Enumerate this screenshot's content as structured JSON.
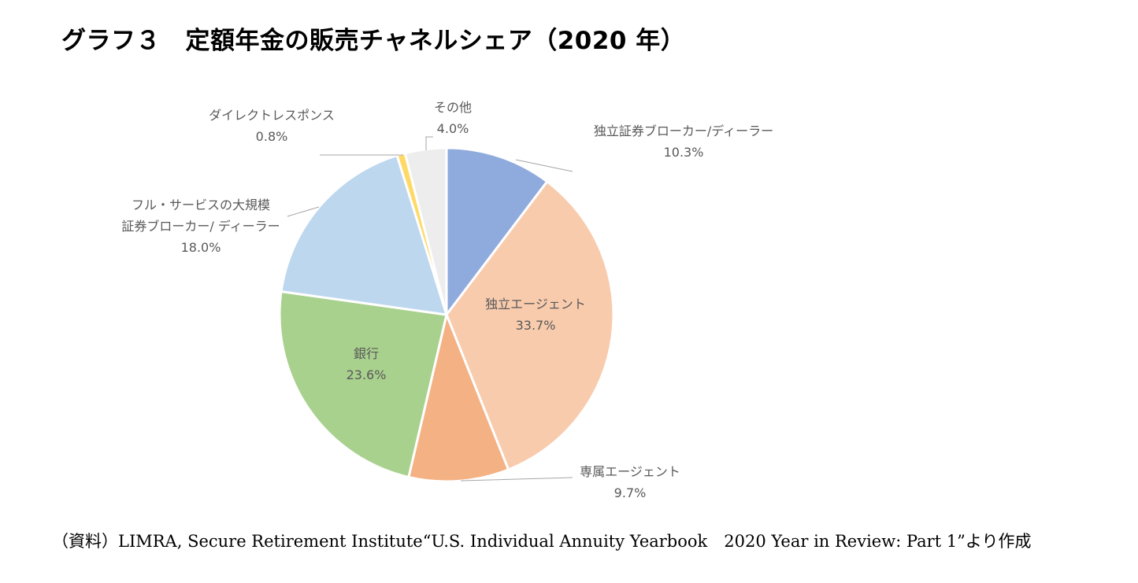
{
  "title": "グラフ３　定額年金の販売チャネルシェア（2020 年）",
  "source": "（資料）LIMRA, Secure Retirement Institute“U.S. Individual Annuity Yearbook　2020 Year in Review: Part 1”より作成",
  "chart_data": {
    "type": "pie",
    "slices": [
      {
        "label": [
          "独立証券ブローカー/ディーラー"
        ],
        "value": 10.3,
        "value_label": "10.3%",
        "color": "#8faadc"
      },
      {
        "label": [
          "独立エージェント"
        ],
        "value": 33.7,
        "value_label": "33.7%",
        "color": "#f8cbad"
      },
      {
        "label": [
          "専属エージェント"
        ],
        "value": 9.7,
        "value_label": "9.7%",
        "color": "#f4b183"
      },
      {
        "label": [
          "銀行"
        ],
        "value": 23.6,
        "value_label": "23.6%",
        "color": "#a9d18e"
      },
      {
        "label": [
          "フル・サービスの大規模",
          "証券ブローカー/ ディーラー"
        ],
        "value": 18.0,
        "value_label": "18.0%",
        "color": "#bdd7ee"
      },
      {
        "label": [
          "ダイレクトレスポンス"
        ],
        "value": 0.8,
        "value_label": "0.8%",
        "color": "#ffd966"
      },
      {
        "label": [
          "その他"
        ],
        "value": 4.0,
        "value_label": "4.0%",
        "color": "#ededed"
      }
    ]
  }
}
